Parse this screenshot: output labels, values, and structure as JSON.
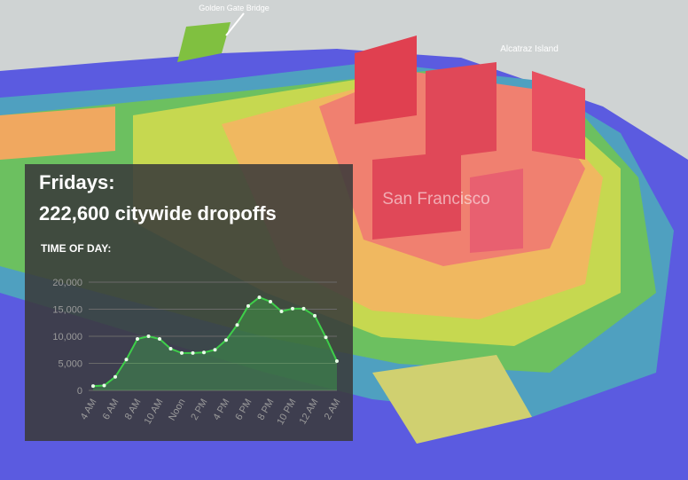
{
  "map": {
    "labels": [
      "Golden Gate Bridge",
      "Alcatraz Island",
      "San Francisco"
    ]
  },
  "chart_data": {
    "type": "line",
    "title": "Fridays:",
    "subtitle": "222,600 citywide dropoffs",
    "xlabel": "TIME OF DAY:",
    "categories": [
      "4 AM",
      null,
      "6 AM",
      null,
      "8 AM",
      null,
      "10 AM",
      null,
      "Noon",
      null,
      "2 PM",
      null,
      "4 PM",
      null,
      "6 PM",
      null,
      "8 PM",
      null,
      "10 PM",
      null,
      "12 AM",
      null,
      "2 AM"
    ],
    "values": [
      800,
      900,
      2500,
      5700,
      9500,
      10000,
      9500,
      7700,
      6900,
      6900,
      7000,
      7500,
      9300,
      12100,
      15600,
      17200,
      16400,
      14600,
      15100,
      15100,
      13800,
      9800,
      5400
    ],
    "color": "#3ecf4a",
    "ylim": [
      0,
      20000
    ],
    "yticks": [
      0,
      {
        "value": 5000,
        "label": "5,000"
      },
      {
        "value": 10000,
        "label": "10,000"
      },
      {
        "value": 15000,
        "label": "15,000"
      },
      {
        "value": 20000,
        "label": "20,000"
      }
    ],
    "grid": true
  }
}
